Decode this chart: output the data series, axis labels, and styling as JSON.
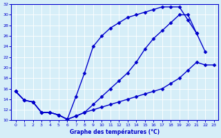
{
  "xlabel": "Graphe des températures (°C)",
  "background_color": "#d6eef8",
  "line_color": "#0000cc",
  "xlim": [
    -0.5,
    23.5
  ],
  "ylim": [
    10,
    32
  ],
  "yticks": [
    10,
    12,
    14,
    16,
    18,
    20,
    22,
    24,
    26,
    28,
    30,
    32
  ],
  "xticks": [
    0,
    1,
    2,
    3,
    4,
    5,
    6,
    7,
    8,
    9,
    10,
    11,
    12,
    13,
    14,
    15,
    16,
    17,
    18,
    19,
    20,
    21,
    22,
    23
  ],
  "line_top": {
    "x": [
      0,
      1,
      2,
      3,
      4,
      5,
      6,
      7,
      8,
      9,
      10,
      11,
      12,
      13,
      14,
      15,
      16,
      17,
      18,
      19,
      20,
      21
    ],
    "y": [
      15.5,
      13.8,
      13.5,
      11.5,
      11.5,
      11.0,
      10.2,
      14.5,
      19.0,
      24.0,
      26.0,
      27.5,
      28.5,
      29.5,
      30.0,
      30.5,
      31.0,
      31.5,
      31.5,
      31.5,
      29.0,
      26.5
    ]
  },
  "line_mid": {
    "x": [
      0,
      1,
      2,
      3,
      4,
      5,
      6,
      7,
      8,
      9,
      10,
      11,
      12,
      13,
      14,
      15,
      16,
      17,
      18,
      19,
      20,
      21,
      22
    ],
    "y": [
      15.5,
      13.8,
      13.5,
      11.5,
      11.5,
      11.0,
      10.2,
      10.8,
      11.5,
      13.0,
      14.5,
      16.0,
      17.5,
      19.0,
      21.0,
      23.5,
      25.5,
      27.0,
      28.5,
      30.0,
      30.0,
      26.5,
      23.0
    ]
  },
  "line_bot": {
    "x": [
      0,
      1,
      2,
      3,
      4,
      5,
      6,
      7,
      8,
      9,
      10,
      11,
      12,
      13,
      14,
      15,
      16,
      17,
      18,
      19,
      20,
      21,
      22,
      23
    ],
    "y": [
      15.5,
      13.8,
      13.5,
      11.5,
      11.5,
      11.0,
      10.2,
      10.8,
      11.5,
      12.0,
      12.5,
      13.0,
      13.5,
      14.0,
      14.5,
      15.0,
      15.5,
      16.0,
      17.0,
      18.0,
      19.5,
      21.0,
      20.5,
      20.5
    ]
  }
}
